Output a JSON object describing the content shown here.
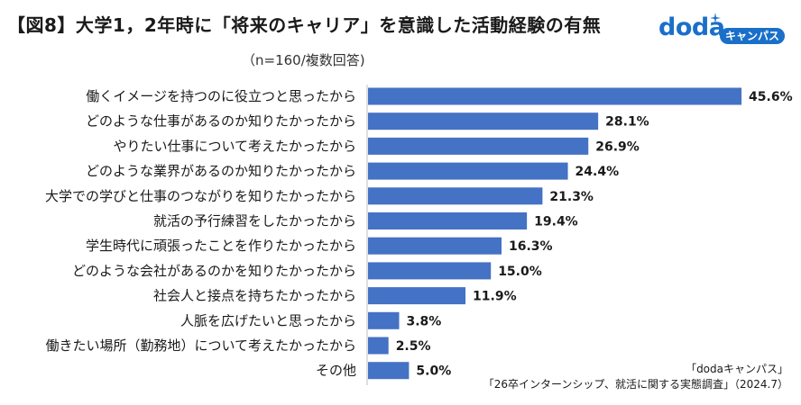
{
  "header": {
    "title": "【図8】大学1，2年時に「将来のキャリア」を意識した活動経験の有無",
    "subtitle": "（n=160/複数回答)"
  },
  "logo": {
    "word": "doda",
    "badge": "キャンパス",
    "color": "#1a6fc9"
  },
  "source": {
    "line1": "「dodaキャンパス」",
    "line2": "「26卒インターンシップ、就活に関する実態調査」（2024.7）"
  },
  "chart_data": {
    "type": "bar",
    "orientation": "horizontal",
    "title": "【図8】大学1，2年時に「将来のキャリア」を意識した活動経験の有無",
    "subtitle": "（n=160/複数回答)",
    "unit": "%",
    "xlim": [
      0,
      50
    ],
    "bar_color": "#4472c4",
    "categories": [
      "働くイメージを持つのに役立つと思ったから",
      "どのような仕事があるのか知りたかったから",
      "やりたい仕事について考えたかったから",
      "どのような業界があるのか知りたかったから",
      "大学での学びと仕事のつながりを知りたかったから",
      "就活の予行練習をしたかったから",
      "学生時代に頑張ったことを作りたかったから",
      "どのような会社があるのかを知りたかったから",
      "社会人と接点を持ちたかったから",
      "人脈を広げたいと思ったから",
      "働きたい場所（勤務地）について考えたかったから",
      "その他"
    ],
    "values": [
      45.6,
      28.1,
      26.9,
      24.4,
      21.3,
      19.4,
      16.3,
      15.0,
      11.9,
      3.8,
      2.5,
      5.0
    ],
    "value_labels": [
      "45.6%",
      "28.1%",
      "26.9%",
      "24.4%",
      "21.3%",
      "19.4%",
      "16.3%",
      "15.0%",
      "11.9%",
      "3.8%",
      "2.5%",
      "5.0%"
    ]
  }
}
